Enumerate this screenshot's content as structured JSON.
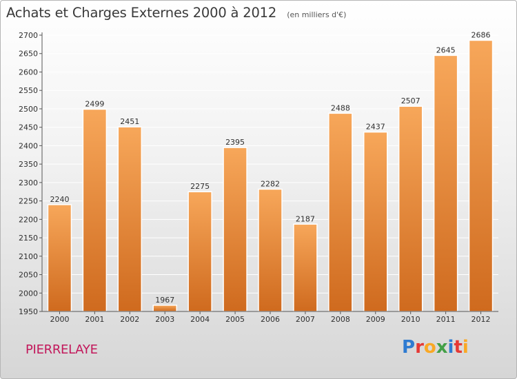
{
  "header": {
    "title": "Achats et Charges Externes 2000 à 2012",
    "subtitle": "(en milliers d'€)"
  },
  "footer": {
    "commune": "PIERRELAYE",
    "brand_letters": [
      {
        "ch": "P",
        "color": "#2e7bd1"
      },
      {
        "ch": "r",
        "color": "#e53935"
      },
      {
        "ch": "o",
        "color": "#f9a825"
      },
      {
        "ch": "x",
        "color": "#43a047"
      },
      {
        "ch": "i",
        "color": "#2e7bd1"
      },
      {
        "ch": "t",
        "color": "#e53935"
      },
      {
        "ch": "i",
        "color": "#f9a825"
      }
    ]
  },
  "colors": {
    "bar_top": "#f7a75a",
    "bar_bottom": "#cf6a1e",
    "grid": "#ffffff",
    "axis": "#555555"
  },
  "chart_data": {
    "type": "bar",
    "title": "Achats et Charges Externes 2000 à 2012",
    "subtitle": "(en milliers d'€)",
    "xlabel": "",
    "ylabel": "",
    "categories": [
      "2000",
      "2001",
      "2002",
      "2003",
      "2004",
      "2005",
      "2006",
      "2007",
      "2008",
      "2009",
      "2010",
      "2011",
      "2012"
    ],
    "values": [
      2240,
      2499,
      2451,
      1967,
      2275,
      2395,
      2282,
      2187,
      2488,
      2437,
      2507,
      2645,
      2686
    ],
    "ylim": [
      1950,
      2700
    ],
    "yticks": [
      1950,
      2000,
      2050,
      2100,
      2150,
      2200,
      2250,
      2300,
      2350,
      2400,
      2450,
      2500,
      2550,
      2600,
      2650,
      2700
    ],
    "grid": true,
    "legend": "none"
  }
}
